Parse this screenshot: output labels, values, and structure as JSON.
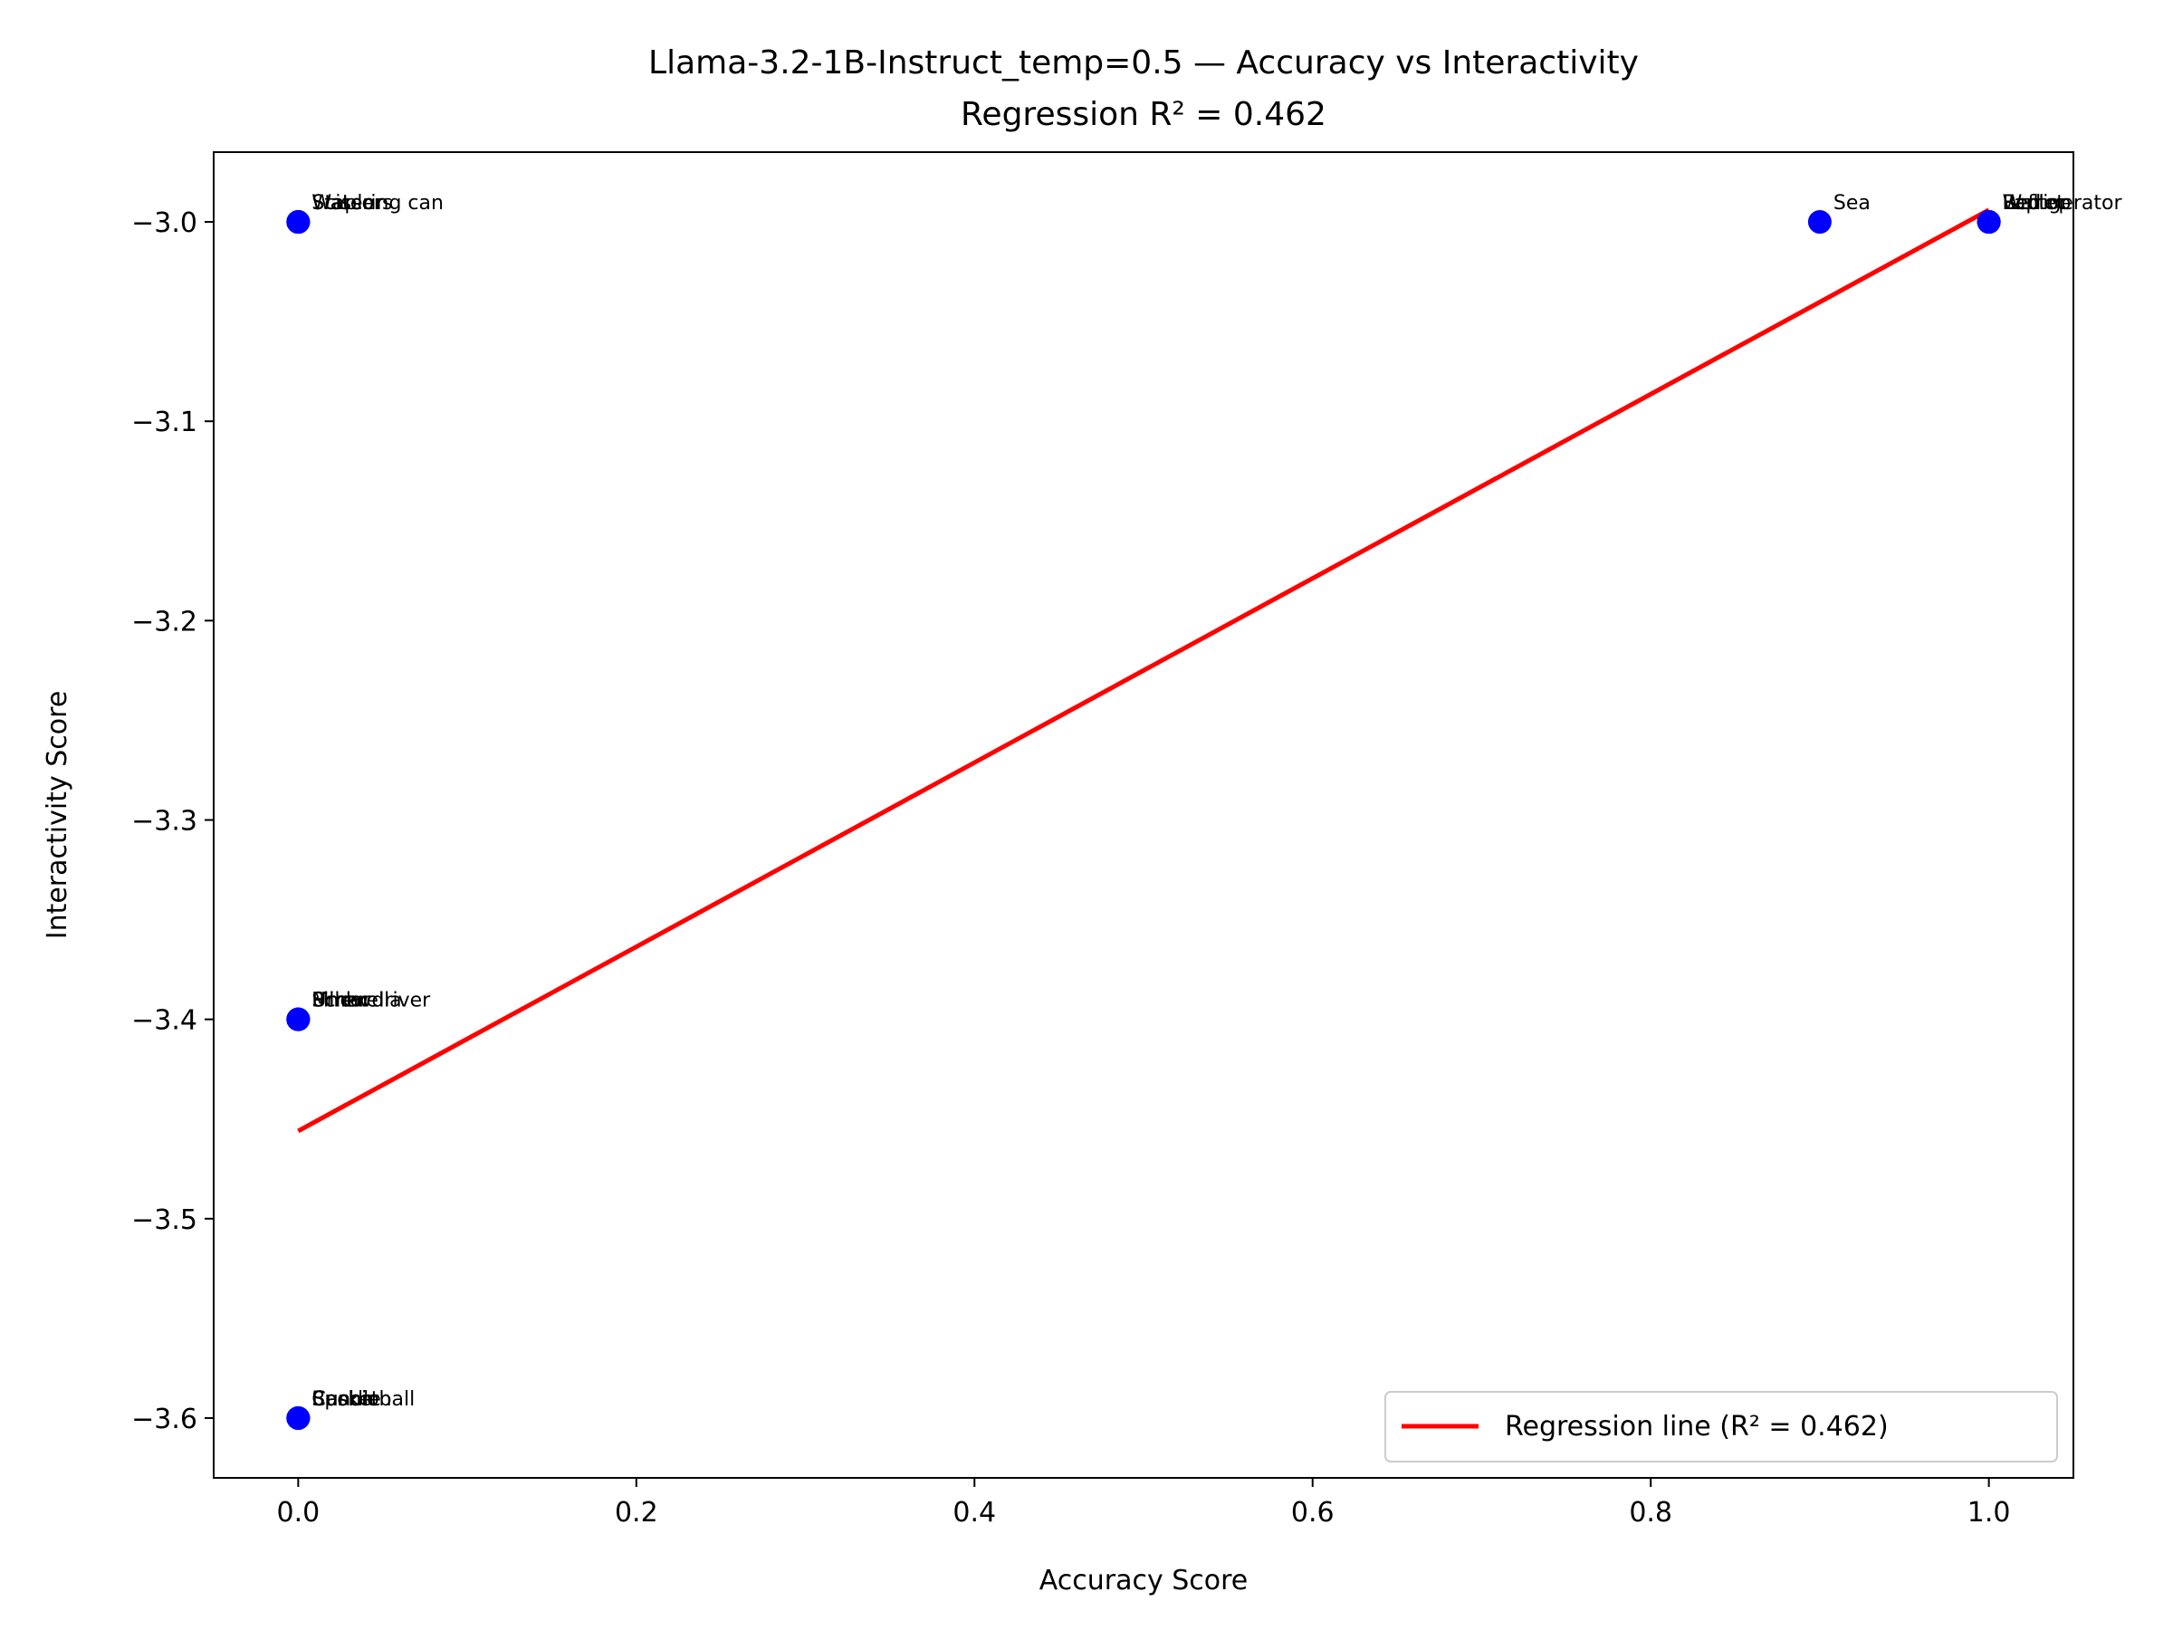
{
  "chart_data": {
    "type": "scatter",
    "title": "Llama-3.2-1B-Instruct_temp=0.5 — Accuracy vs Interactivity",
    "subtitle": "Regression R² = 0.462",
    "xlabel": "Accuracy Score",
    "ylabel": "Interactivity Score",
    "xlim": [
      -0.05,
      1.05
    ],
    "ylim": [
      -3.63,
      -2.965
    ],
    "xticks": [
      0.0,
      0.2,
      0.4,
      0.6,
      0.8,
      1.0
    ],
    "xtick_labels": [
      "0.0",
      "0.2",
      "0.4",
      "0.6",
      "0.8",
      "1.0"
    ],
    "yticks": [
      -3.0,
      -3.1,
      -3.2,
      -3.3,
      -3.4,
      -3.5,
      -3.6
    ],
    "ytick_labels": [
      "−3.0",
      "−3.1",
      "−3.2",
      "−3.3",
      "−3.4",
      "−3.5",
      "−3.6"
    ],
    "grid": false,
    "point_color": "#0000ff",
    "points": [
      {
        "x": 0.0,
        "y": -3.0,
        "label": "Watering can"
      },
      {
        "x": 0.0,
        "y": -3.0,
        "label": "Stapler"
      },
      {
        "x": 0.0,
        "y": -3.0,
        "label": "Scissors"
      },
      {
        "x": 0.0,
        "y": -3.0,
        "label": "Water"
      },
      {
        "x": 0.0,
        "y": -3.4,
        "label": "Screwdriver"
      },
      {
        "x": 0.0,
        "y": -3.4,
        "label": "Umbrella"
      },
      {
        "x": 0.0,
        "y": -3.4,
        "label": "Pillow"
      },
      {
        "x": 0.0,
        "y": -3.4,
        "label": "Mirror"
      },
      {
        "x": 0.0,
        "y": -3.6,
        "label": "Basketball"
      },
      {
        "x": 0.0,
        "y": -3.6,
        "label": "Candle"
      },
      {
        "x": 0.0,
        "y": -3.6,
        "label": "Spoon"
      },
      {
        "x": 0.0,
        "y": -3.6,
        "label": "Cushion"
      },
      {
        "x": 0.9,
        "y": -3.0,
        "label": "Sea"
      },
      {
        "x": 1.0,
        "y": -3.0,
        "label": "Refrigerator"
      },
      {
        "x": 1.0,
        "y": -3.0,
        "label": "Bed"
      },
      {
        "x": 1.0,
        "y": -3.0,
        "label": "Wallet"
      },
      {
        "x": 1.0,
        "y": -3.0,
        "label": "Laptop"
      }
    ],
    "regression": {
      "x": [
        0.0,
        1.0
      ],
      "y": [
        -3.456,
        -2.994
      ],
      "color": "#ff0000",
      "label": "Regression line (R² = 0.462)"
    },
    "legend_position": "lower-right"
  }
}
